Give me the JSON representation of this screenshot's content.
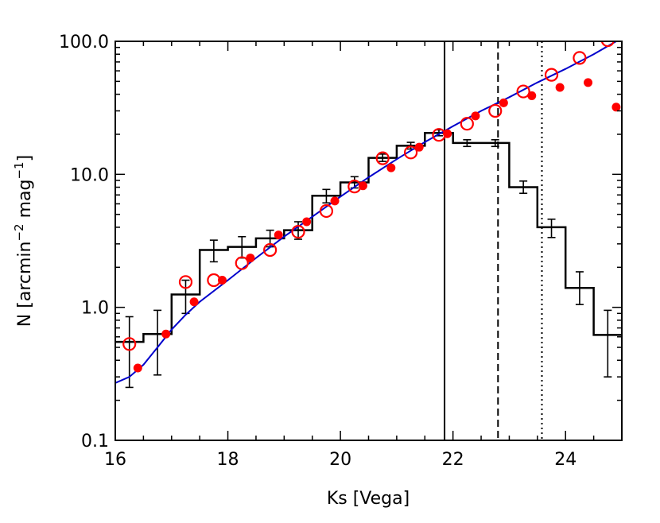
{
  "chart_data": {
    "type": "line",
    "xlabel": "Ks [Vega]",
    "ylabel_main": "N [arcmin",
    "ylabel_exp1": "−2",
    "ylabel_mid": " mag",
    "ylabel_exp2": "−1",
    "ylabel_end": "]",
    "xlim": [
      16,
      25
    ],
    "ylim": [
      0.1,
      100
    ],
    "yscale": "log",
    "grid": false,
    "x_ticks": [
      {
        "value": 16,
        "label": "16"
      },
      {
        "value": 18,
        "label": "18"
      },
      {
        "value": 20,
        "label": "20"
      },
      {
        "value": 22,
        "label": "22"
      },
      {
        "value": 24,
        "label": "24"
      }
    ],
    "y_ticks": [
      {
        "value": 0.1,
        "label": "0.1"
      },
      {
        "value": 1,
        "label": "1.0"
      },
      {
        "value": 10,
        "label": "10.0"
      },
      {
        "value": 100,
        "label": "100.0"
      }
    ],
    "histogram": {
      "color": "#000000",
      "edges": [
        16.0,
        16.25,
        16.5,
        16.75,
        17.0,
        17.25,
        17.5,
        17.75,
        18.0,
        18.25,
        18.5,
        18.75,
        19.0,
        19.25,
        19.5,
        19.75,
        20.0,
        20.25,
        20.5,
        20.75,
        21.0,
        21.25,
        21.5,
        21.75,
        22.0,
        22.25,
        22.5,
        22.75,
        23.0,
        23.25,
        23.5,
        23.75,
        24.0,
        24.25,
        24.5,
        24.75,
        25.0
      ],
      "values": [
        0.55,
        0.55,
        0.63,
        0.63,
        1.25,
        1.25,
        2.7,
        2.7,
        2.85,
        2.85,
        3.3,
        3.3,
        3.8,
        3.8,
        6.9,
        6.9,
        8.7,
        8.7,
        13.3,
        13.3,
        16.4,
        16.4,
        20.5,
        20.5,
        17.2,
        17.2,
        17.2,
        17.2,
        8.0,
        8.0,
        4.0,
        4.0,
        1.4,
        1.4,
        0.62,
        0.62
      ],
      "error_bars": [
        {
          "x": 16.25,
          "y": 0.55,
          "lo": 0.25,
          "hi": 0.85
        },
        {
          "x": 16.75,
          "y": 0.63,
          "lo": 0.31,
          "hi": 0.95
        },
        {
          "x": 17.25,
          "y": 1.25,
          "lo": 0.9,
          "hi": 1.6
        },
        {
          "x": 17.75,
          "y": 2.7,
          "lo": 2.2,
          "hi": 3.2
        },
        {
          "x": 18.25,
          "y": 2.85,
          "lo": 2.35,
          "hi": 3.4
        },
        {
          "x": 18.75,
          "y": 3.3,
          "lo": 2.85,
          "hi": 3.8
        },
        {
          "x": 19.25,
          "y": 3.8,
          "lo": 3.25,
          "hi": 4.4
        },
        {
          "x": 19.75,
          "y": 6.9,
          "lo": 6.1,
          "hi": 7.7
        },
        {
          "x": 20.25,
          "y": 8.7,
          "lo": 7.9,
          "hi": 9.6
        },
        {
          "x": 20.75,
          "y": 13.3,
          "lo": 12.5,
          "hi": 14.2
        },
        {
          "x": 21.25,
          "y": 16.4,
          "lo": 15.5,
          "hi": 17.4
        },
        {
          "x": 21.75,
          "y": 20.5,
          "lo": 19.5,
          "hi": 21.6
        },
        {
          "x": 22.25,
          "y": 17.2,
          "lo": 16.2,
          "hi": 18.2
        },
        {
          "x": 22.75,
          "y": 17.2,
          "lo": 16.2,
          "hi": 18.2
        },
        {
          "x": 23.25,
          "y": 8.0,
          "lo": 7.2,
          "hi": 8.9
        },
        {
          "x": 23.75,
          "y": 4.0,
          "lo": 3.35,
          "hi": 4.6
        },
        {
          "x": 24.25,
          "y": 1.4,
          "lo": 1.05,
          "hi": 1.85
        },
        {
          "x": 24.75,
          "y": 0.62,
          "lo": 0.3,
          "hi": 0.95
        }
      ]
    },
    "open_circles": {
      "color": "#ff0000",
      "x": [
        16.25,
        17.25,
        17.75,
        18.25,
        18.75,
        19.25,
        19.75,
        20.25,
        20.75,
        21.25,
        21.75,
        22.25,
        22.75,
        23.25,
        23.75,
        24.25,
        24.75
      ],
      "y": [
        0.53,
        1.55,
        1.6,
        2.15,
        2.7,
        3.7,
        5.3,
        8.1,
        13.2,
        14.6,
        19.8,
        24.0,
        30.0,
        42.0,
        56.0,
        75.0,
        102.0
      ]
    },
    "filled_circles": {
      "color": "#ff0000",
      "x": [
        16.4,
        16.9,
        17.4,
        17.9,
        18.4,
        18.9,
        19.4,
        19.9,
        20.4,
        20.9,
        21.4,
        21.9,
        22.4,
        22.9,
        23.4,
        23.9,
        24.4,
        24.9
      ],
      "y": [
        0.35,
        0.63,
        1.1,
        1.6,
        2.35,
        3.5,
        4.4,
        6.3,
        8.2,
        11.2,
        16.0,
        20.2,
        27.5,
        34.5,
        39.0,
        45.0,
        49.0,
        32.0
      ]
    },
    "fit_line": {
      "color": "#0000cc",
      "x": [
        16.0,
        16.25,
        16.5,
        16.75,
        17.0,
        17.25,
        17.5,
        18.0,
        18.5,
        19.0,
        19.5,
        20.0,
        20.5,
        21.0,
        21.5,
        22.0,
        22.5,
        23.0,
        23.5,
        24.0,
        24.5,
        24.9
      ],
      "y": [
        0.27,
        0.3,
        0.37,
        0.5,
        0.68,
        0.88,
        1.1,
        1.6,
        2.35,
        3.4,
        4.8,
        6.8,
        9.5,
        13.0,
        17.5,
        23.0,
        30.0,
        38.0,
        49.0,
        62.0,
        80.0,
        100.0
      ]
    },
    "vertical_lines": [
      {
        "x": 21.85,
        "style": "solid"
      },
      {
        "x": 22.8,
        "style": "dashed"
      },
      {
        "x": 23.58,
        "style": "dotted"
      }
    ]
  }
}
